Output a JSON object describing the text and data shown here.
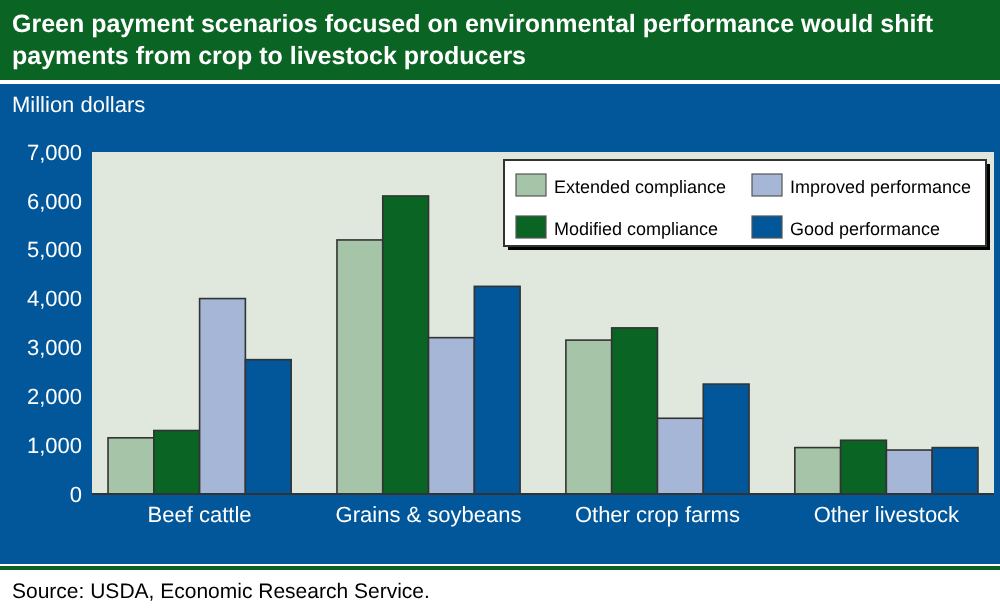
{
  "chart_data": {
    "type": "bar",
    "title": "Green payment scenarios focused on environmental performance would shift payments from crop to livestock producers",
    "ylabel": "Million dollars",
    "categories": [
      "Beef cattle",
      "Grains & soybeans",
      "Other crop farms",
      "Other livestock"
    ],
    "series": [
      {
        "name": "Extended compliance",
        "color": "#a6c4a8",
        "values": [
          1150,
          5200,
          3150,
          950
        ]
      },
      {
        "name": "Modified compliance",
        "color": "#0a6423",
        "values": [
          1300,
          6100,
          3400,
          1100
        ]
      },
      {
        "name": "Improved performance",
        "color": "#a6b6d6",
        "values": [
          4000,
          3200,
          1550,
          900
        ]
      },
      {
        "name": "Good performance",
        "color": "#02579a",
        "values": [
          2750,
          4250,
          2250,
          950
        ]
      }
    ],
    "ylim": [
      0,
      7000
    ],
    "yticks": [
      {
        "value": 0,
        "label": "0"
      },
      {
        "value": 1000,
        "label": "1,000"
      },
      {
        "value": 2000,
        "label": "2,000"
      },
      {
        "value": 3000,
        "label": "3,000"
      },
      {
        "value": 4000,
        "label": "4,000"
      },
      {
        "value": 5000,
        "label": "5,000"
      },
      {
        "value": 6000,
        "label": "6,000"
      },
      {
        "value": 7000,
        "label": "7,000"
      }
    ],
    "legend": "top right",
    "grid": false,
    "annotations": [
      "Source:  USDA, Economic Research Service."
    ]
  }
}
